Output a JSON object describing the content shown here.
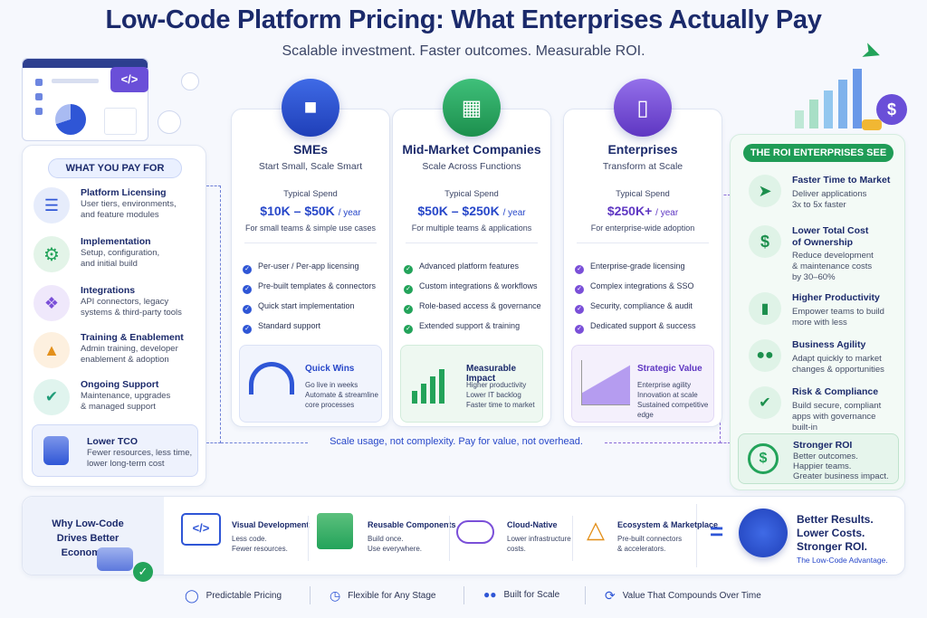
{
  "title": "Low-Code Platform Pricing: What Enterprises Actually Pay",
  "subtitle": "Scalable investment. Faster outcomes. Measurable ROI.",
  "left": {
    "header": "WHAT YOU PAY FOR",
    "items": [
      {
        "title": "Platform Licensing",
        "desc": "User tiers, environments,\nand feature modules",
        "icon": "document-icon"
      },
      {
        "title": "Implementation",
        "desc": "Setup, configuration,\nand initial build",
        "icon": "gear-icon"
      },
      {
        "title": "Integrations",
        "desc": "API connectors, legacy\nsystems & third-party tools",
        "icon": "puzzle-icon"
      },
      {
        "title": "Training & Enablement",
        "desc": "Admin training, developer\nenablement & adoption",
        "icon": "graduation-cap-icon"
      },
      {
        "title": "Ongoing Support",
        "desc": "Maintenance, upgrades\n& managed support",
        "icon": "shield-check-icon"
      }
    ],
    "tco": {
      "title": "Lower TCO",
      "desc": "Fewer resources, less time,\nlower long-term cost"
    }
  },
  "tiers": [
    {
      "name": "SMEs",
      "tagline": "Start Small, Scale Smart",
      "spend_label": "Typical Spend",
      "price": "$10K – $50K",
      "unit": "/ year",
      "for": "For small teams & simple use cases",
      "features": [
        "Per-user / Per-app licensing",
        "Pre-built templates & connectors",
        "Quick start implementation",
        "Standard support"
      ],
      "box_title": "Quick Wins",
      "box_desc": "Go live in weeks\nAutomate & streamline\ncore processes",
      "accent": "#2f56d6"
    },
    {
      "name": "Mid-Market Companies",
      "tagline": "Scale Across Functions",
      "spend_label": "Typical Spend",
      "price": "$50K – $250K",
      "unit": "/ year",
      "for": "For multiple teams & applications",
      "features": [
        "Advanced platform features",
        "Custom integrations & workflows",
        "Role-based access & governance",
        "Extended support & training"
      ],
      "box_title": "Measurable Impact",
      "box_desc": "Higher productivity\nLower IT backlog\nFaster time to market",
      "accent": "#23a35a"
    },
    {
      "name": "Enterprises",
      "tagline": "Transform at Scale",
      "spend_label": "Typical Spend",
      "price": "$250K+",
      "unit": "/ year",
      "for": "For enterprise-wide adoption",
      "features": [
        "Enterprise-grade licensing",
        "Complex integrations & SSO",
        "Security, compliance & audit",
        "Dedicated support & success"
      ],
      "box_title": "Strategic Value",
      "box_desc": "Enterprise agility\nInnovation at scale\nSustained competitive edge",
      "accent": "#7a4fd8"
    }
  ],
  "tagline_mid": "Scale usage, not complexity. Pay for value, not overhead.",
  "right": {
    "header": "THE ROI ENTERPRISES SEE",
    "items": [
      {
        "title": "Faster Time to Market",
        "desc": "Deliver applications\n3x to 5x faster",
        "icon": "rocket-icon"
      },
      {
        "title": "Lower Total Cost\nof Ownership",
        "desc": "Reduce development\n& maintenance costs\nby 30–60%",
        "icon": "dollar-icon"
      },
      {
        "title": "Higher Productivity",
        "desc": "Empower teams to build\nmore with less",
        "icon": "bar-chart-icon"
      },
      {
        "title": "Business Agility",
        "desc": "Adapt quickly to market\nchanges & opportunities",
        "icon": "people-icon"
      },
      {
        "title": "Risk & Compliance",
        "desc": "Build secure, compliant\napps with governance\nbuilt-in",
        "icon": "shield-icon"
      }
    ],
    "roi": {
      "title": "Stronger ROI",
      "desc": "Better outcomes.\nHappier teams.\nGreater business impact."
    }
  },
  "bottom": {
    "why": "Why Low-Code\nDrives Better Economics",
    "items": [
      {
        "title": "Visual Development",
        "desc": "Less code.\nFewer resources."
      },
      {
        "title": "Reusable Components",
        "desc": "Build once.\nUse everywhere."
      },
      {
        "title": "Cloud-Native",
        "desc": "Lower infrastructure\ncosts."
      },
      {
        "title": "Ecosystem & Marketplace",
        "desc": "Pre-built connectors\n& accelerators."
      }
    ],
    "equals": "=",
    "result": "Better Results.\nLower Costs.\nStronger ROI.",
    "result_sub": "The Low-Code Advantage."
  },
  "footer": [
    "Predictable Pricing",
    "Flexible for Any Stage",
    "Built for Scale",
    "Value That Compounds Over Time"
  ]
}
